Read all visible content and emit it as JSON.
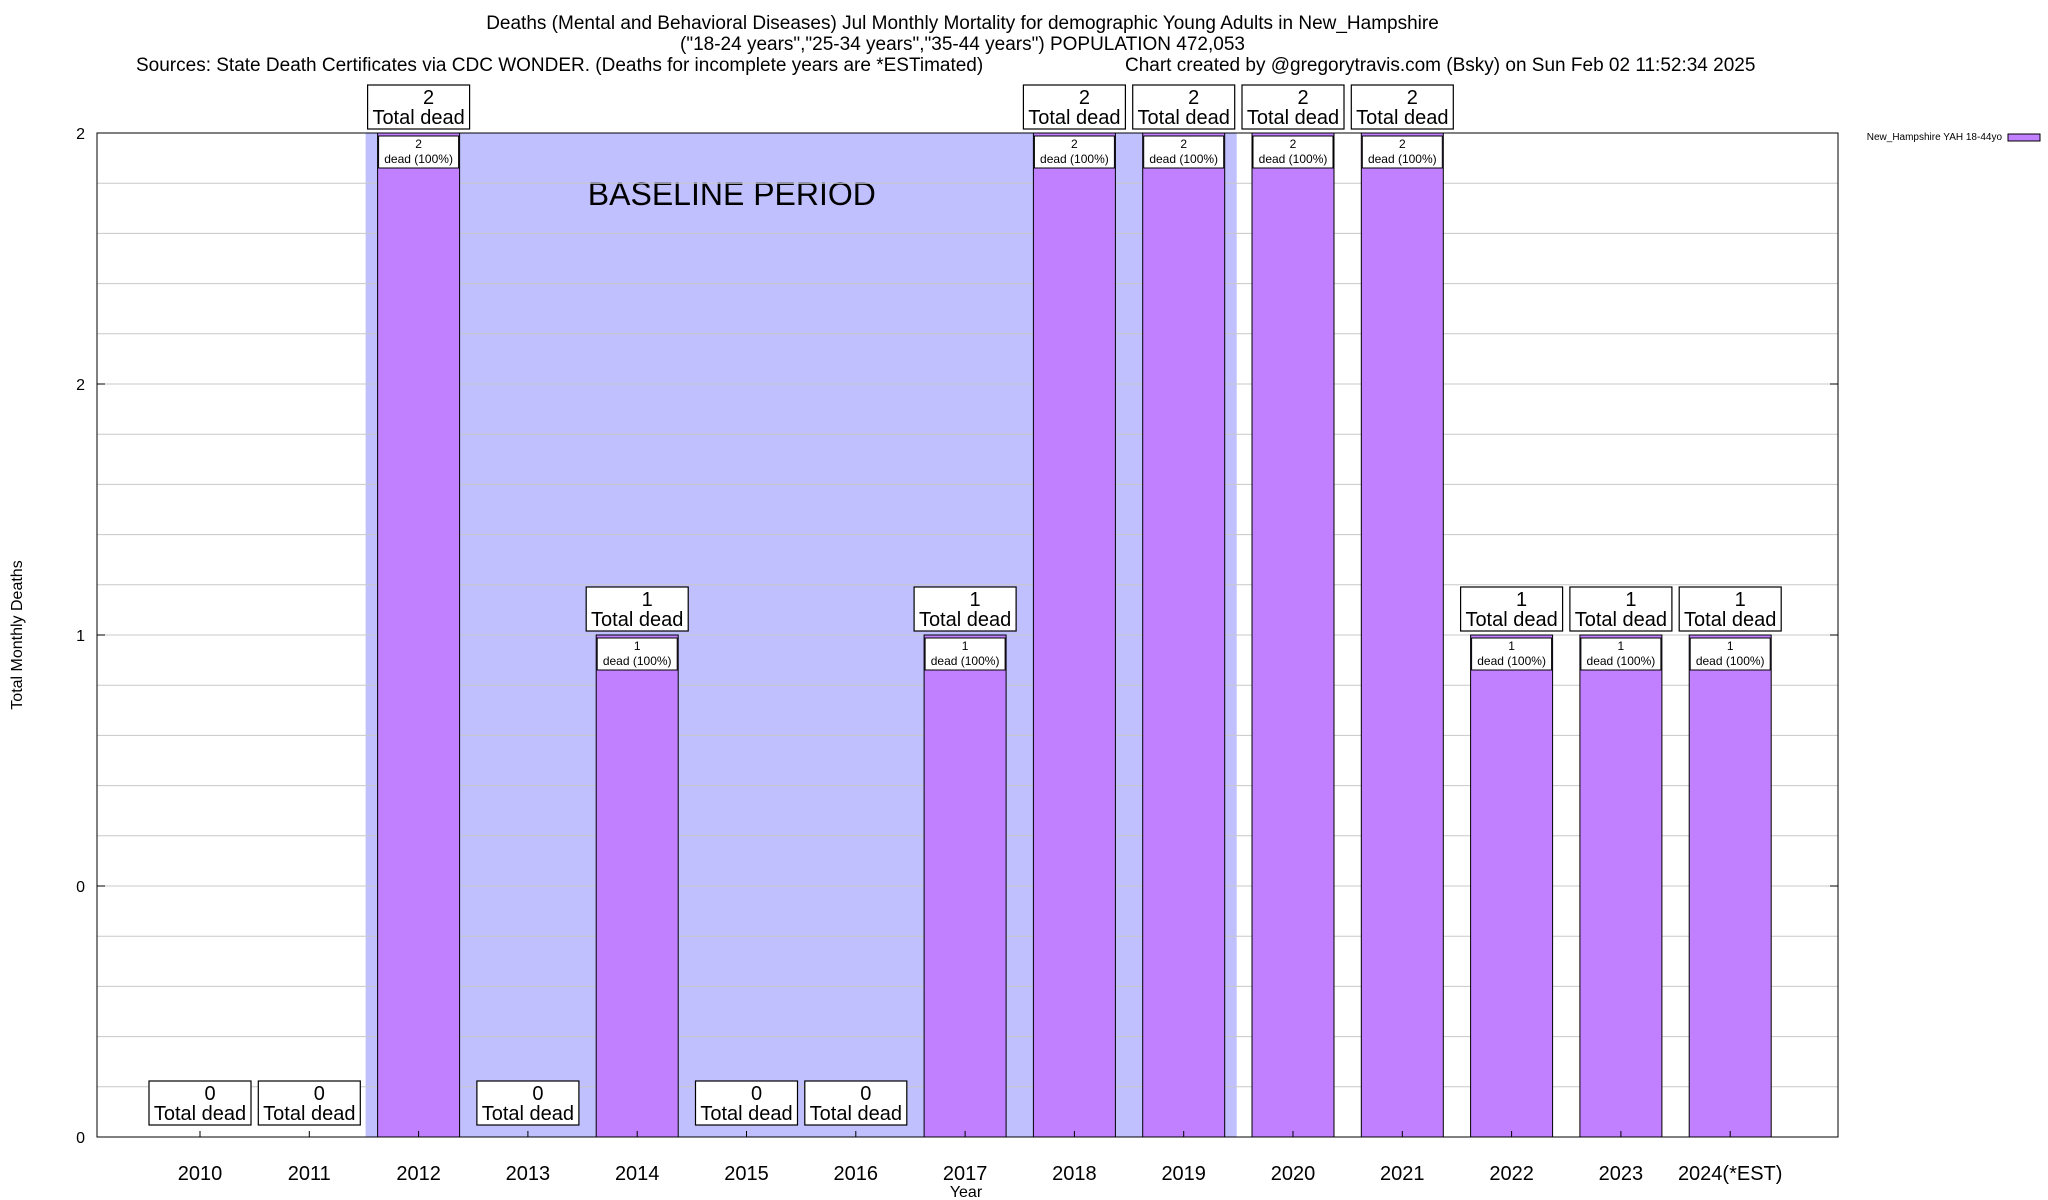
{
  "header": {
    "title_line1": "Deaths (Mental and Behavioral Diseases) Jul Monthly Mortality for demographic Young Adults in New_Hampshire",
    "title_line2": "(\"18-24 years\",\"25-34 years\",\"35-44 years\") POPULATION 472,053",
    "sources": "Sources: State Death Certificates via CDC WONDER. (Deaths for incomplete years are *ESTimated)",
    "credit": "Chart created by @gregorytravis.com (Bsky) on Sun Feb 02 11:52:34 2025"
  },
  "chart_data": {
    "type": "bar",
    "xlabel": "Year",
    "ylabel": "Total Monthly Deaths",
    "ylim": [
      0,
      2
    ],
    "y_tick_labels": [
      "0",
      "0",
      "1",
      "2",
      "2"
    ],
    "grid": true,
    "legend_position": "top-right",
    "categories": [
      "2010",
      "2011",
      "2012",
      "2013",
      "2014",
      "2015",
      "2016",
      "2017",
      "2018",
      "2019",
      "2020",
      "2021",
      "2022",
      "2023",
      "2024(*EST)"
    ],
    "series": [
      {
        "name": "New_Hampshire YAH 18-44yo",
        "color": "#c080ff",
        "values": [
          0,
          0,
          2,
          0,
          1,
          0,
          0,
          1,
          2,
          2,
          2,
          2,
          1,
          1,
          1
        ]
      }
    ],
    "total_labels": [
      "0",
      "0",
      "2",
      "0",
      "1",
      "0",
      "0",
      "1",
      "2",
      "2",
      "2",
      "2",
      "1",
      "1",
      "1"
    ],
    "total_suffix": "Total dead",
    "inner_labels": [
      "",
      "",
      "2",
      "",
      "1",
      "",
      "",
      "1",
      "2",
      "2",
      "2",
      "2",
      "1",
      "1",
      "1"
    ],
    "inner_suffix": "dead (100%)",
    "baseline_label": "BASELINE PERIOD",
    "baseline_color": "#c0c0ff",
    "baseline_category_span": [
      "2012",
      "2019"
    ]
  }
}
